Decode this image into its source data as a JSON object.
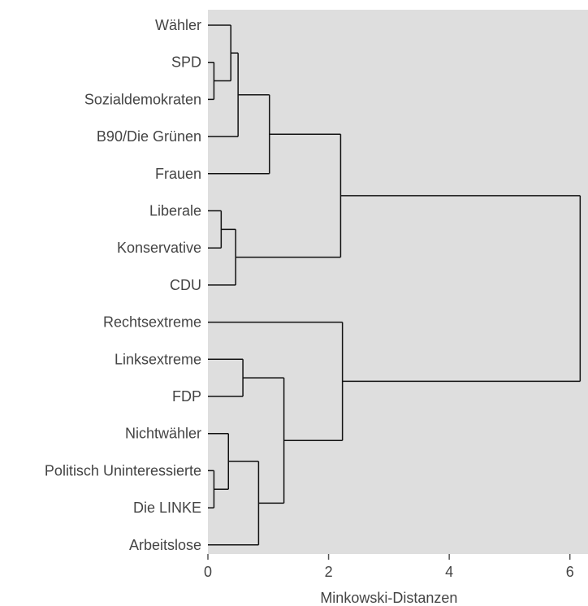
{
  "chart_data": {
    "type": "dendrogram",
    "orientation": "horizontal",
    "xlabel": "Minkowski-Distanzen",
    "xlim": [
      0,
      6.3
    ],
    "x_ticks": [
      0,
      2,
      4,
      6
    ],
    "x_tick_labels": [
      "0",
      "2",
      "4",
      "6"
    ],
    "background": "#dedede",
    "leaves": [
      "Wähler",
      "SPD",
      "Sozialdemokraten",
      "B90/Die Grünen",
      "Frauen",
      "Liberale",
      "Konservative",
      "CDU",
      "Rechtsextreme",
      "Linksextreme",
      "FDP",
      "Nichtwähler",
      "Politisch Uninteressierte",
      "Die LINKE",
      "Arbeitslose"
    ],
    "merges": [
      {
        "id": "n1",
        "children": [
          "leaf:1",
          "leaf:2"
        ],
        "height": 0.1
      },
      {
        "id": "n2",
        "children": [
          "leaf:0",
          "n1"
        ],
        "height": 0.38
      },
      {
        "id": "n3",
        "children": [
          "n2",
          "leaf:3"
        ],
        "height": 0.5
      },
      {
        "id": "n4",
        "children": [
          "n3",
          "leaf:4"
        ],
        "height": 1.02
      },
      {
        "id": "n5",
        "children": [
          "leaf:5",
          "leaf:6"
        ],
        "height": 0.22
      },
      {
        "id": "n6",
        "children": [
          "n5",
          "leaf:7"
        ],
        "height": 0.46
      },
      {
        "id": "n7",
        "children": [
          "n4",
          "n6"
        ],
        "height": 2.2
      },
      {
        "id": "n8",
        "children": [
          "leaf:9",
          "leaf:10"
        ],
        "height": 0.58
      },
      {
        "id": "n9",
        "children": [
          "leaf:12",
          "leaf:13"
        ],
        "height": 0.1
      },
      {
        "id": "n10",
        "children": [
          "leaf:11",
          "n9"
        ],
        "height": 0.34
      },
      {
        "id": "n11",
        "children": [
          "n10",
          "leaf:14"
        ],
        "height": 0.84
      },
      {
        "id": "n12",
        "children": [
          "n8",
          "n11"
        ],
        "height": 1.26
      },
      {
        "id": "n13",
        "children": [
          "leaf:8",
          "n12"
        ],
        "height": 2.23
      },
      {
        "id": "n14",
        "children": [
          "n7",
          "n13"
        ],
        "height": 6.17
      }
    ]
  }
}
